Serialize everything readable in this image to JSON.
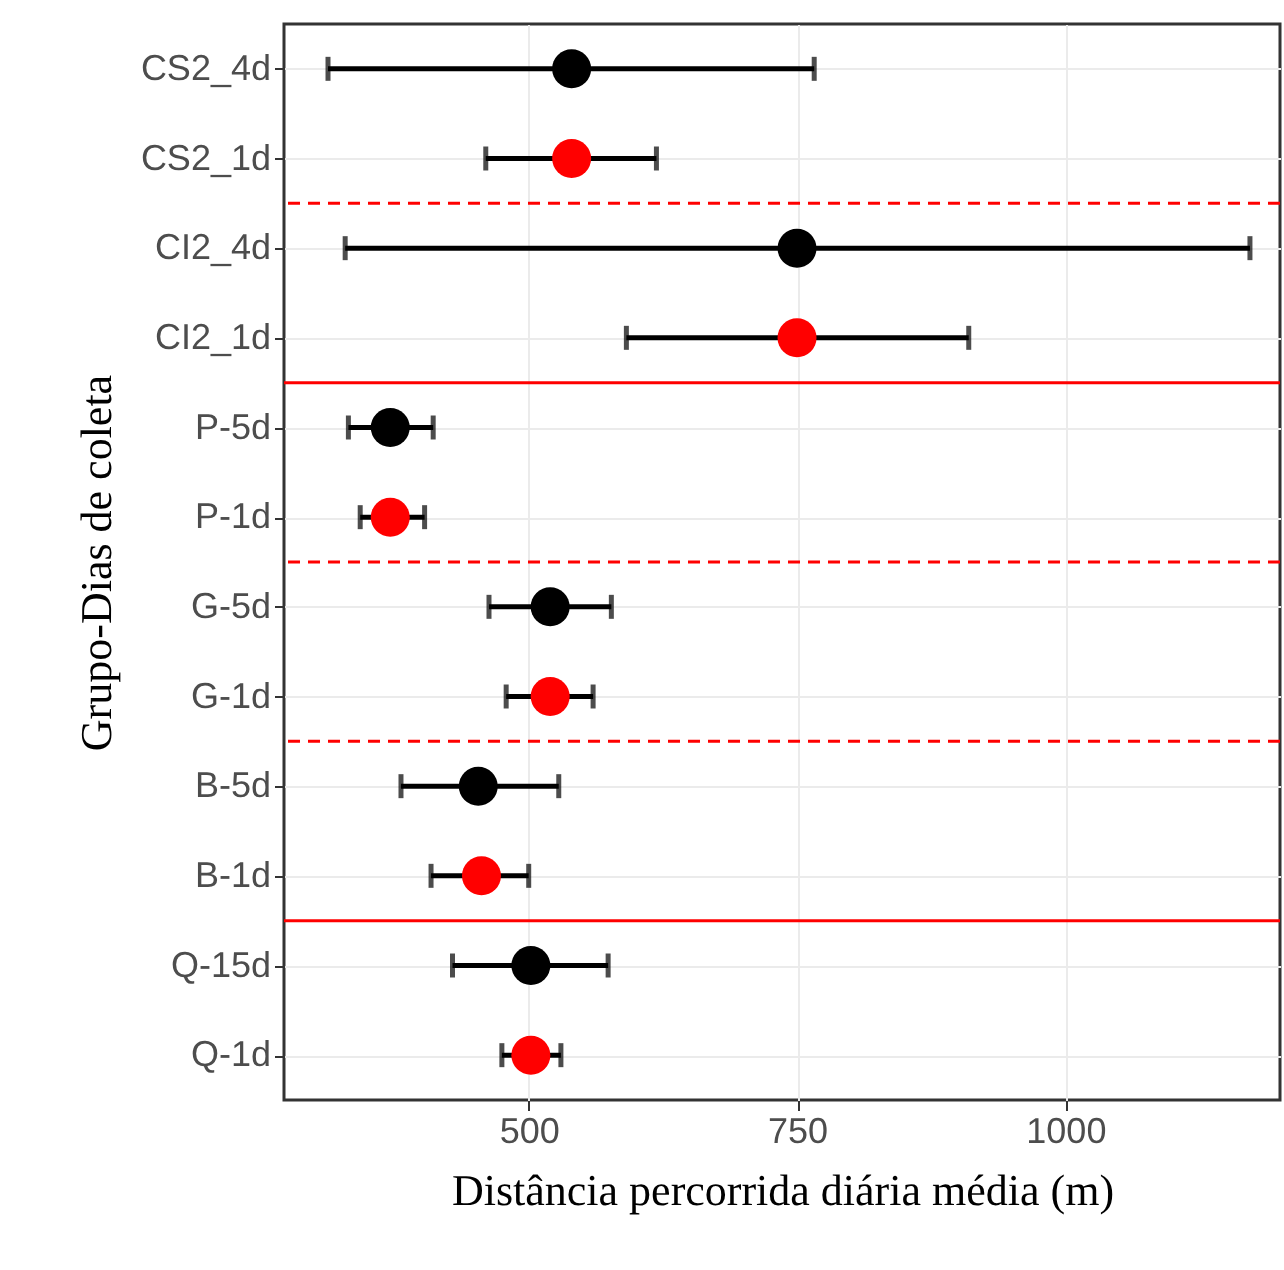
{
  "chart_data": {
    "type": "scatter",
    "orientation": "horizontal",
    "xlabel": "Distância percorrida  diária média (m)",
    "ylabel": "Grupo-Dias de coleta",
    "categories": [
      "CS2_4d",
      "CS2_1d",
      "CI2_4d",
      "CI2_1d",
      "P-5d",
      "P-1d",
      "G-5d",
      "G-1d",
      "B-5d",
      "B-1d",
      "Q-15d",
      "Q-1d"
    ],
    "series": [
      {
        "color": "#000000",
        "values": [
          540,
          null,
          750,
          null,
          371,
          null,
          520,
          null,
          453,
          null,
          502,
          null
        ],
        "errors": [
          [
            313,
            766
          ],
          null,
          [
            329,
            1172
          ],
          null,
          [
            332,
            411
          ],
          null,
          [
            463,
            577
          ],
          null,
          [
            381,
            528
          ],
          null,
          [
            429,
            574
          ],
          null
        ]
      },
      {
        "color": "#ff0000",
        "values": [
          null,
          540,
          null,
          750,
          null,
          371,
          null,
          520,
          null,
          456,
          null,
          502
        ],
        "errors": [
          null,
          [
            460,
            619
          ],
          null,
          [
            591,
            910
          ],
          null,
          [
            343,
            403
          ],
          null,
          [
            479,
            560
          ],
          null,
          [
            409,
            500
          ],
          null,
          [
            475,
            530
          ]
        ]
      }
    ],
    "xlim": [
      272,
      1200
    ],
    "xticks": [
      500,
      750,
      1000
    ],
    "grid": true,
    "marker": "circle"
  }
}
